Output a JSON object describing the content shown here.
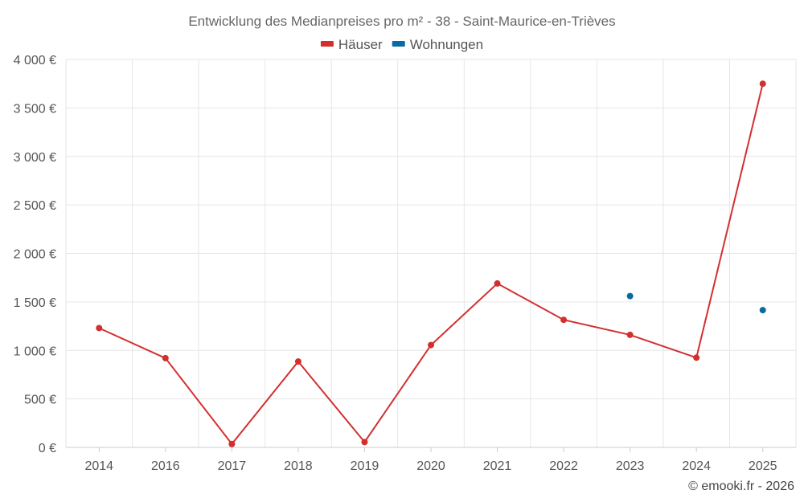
{
  "chart_data": {
    "type": "line",
    "title": "Entwicklung des Medianpreises pro m² - 38 - Saint-Maurice-en-Trièves",
    "categories": [
      "2014",
      "2016",
      "2017",
      "2018",
      "2019",
      "2020",
      "2021",
      "2022",
      "2023",
      "2024",
      "2025"
    ],
    "series": [
      {
        "name": "Häuser",
        "color": "#d32f2f",
        "values": [
          1230,
          920,
          35,
          885,
          55,
          1055,
          1690,
          1315,
          1160,
          925,
          3750
        ]
      },
      {
        "name": "Wohnungen",
        "color": "#0a6aa1",
        "values": [
          null,
          null,
          null,
          null,
          null,
          null,
          null,
          null,
          1560,
          null,
          1415
        ]
      }
    ],
    "ylim": [
      0,
      4000
    ],
    "yticks": [
      0,
      500,
      1000,
      1500,
      2000,
      2500,
      3000,
      3500,
      4000
    ],
    "ytick_labels": [
      "0 €",
      "500 €",
      "1 000 €",
      "1 500 €",
      "2 000 €",
      "2 500 €",
      "3 000 €",
      "3 500 €",
      "4 000 €"
    ],
    "xlabel": "",
    "ylabel": "",
    "grid": true,
    "legend_position": "top-center"
  },
  "credit": "© emooki.fr - 2026"
}
